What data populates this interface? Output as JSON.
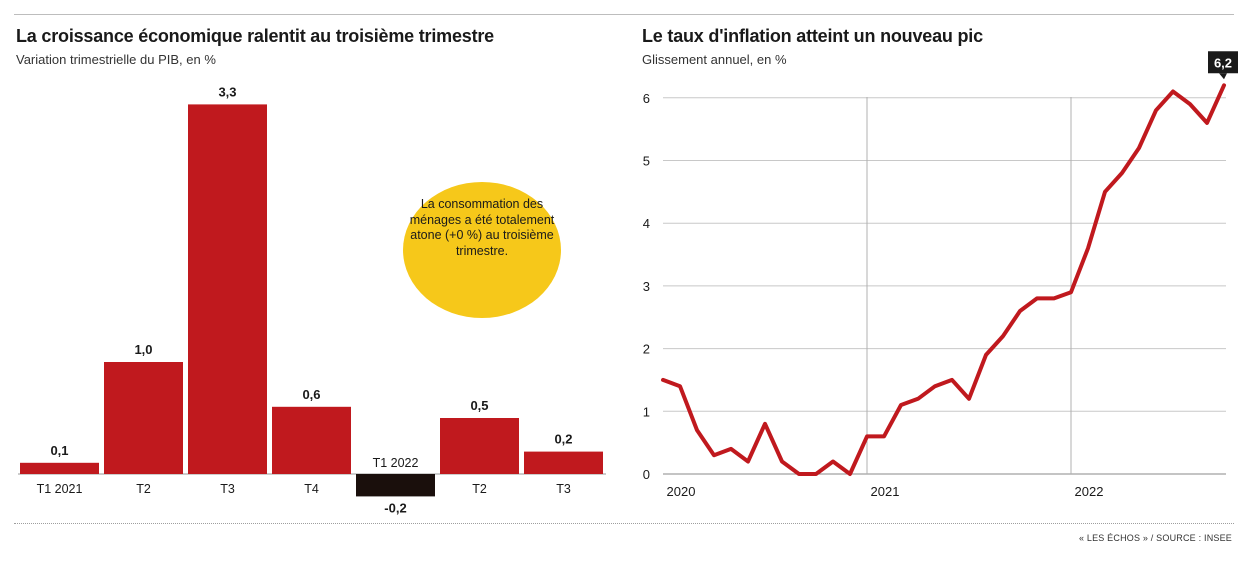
{
  "chart_data": [
    {
      "type": "bar",
      "title": "La croissance économique ralentit au troisième trimestre",
      "subtitle": "Variation trimestrielle du PIB, en %",
      "categories": [
        "T1 2021",
        "T2",
        "T3",
        "T4",
        "T1 2022",
        "T2",
        "T3"
      ],
      "values": [
        0.1,
        1.0,
        3.3,
        0.6,
        -0.2,
        0.5,
        0.2
      ],
      "value_labels": [
        "0,1",
        "1,0",
        "3,3",
        "0,6",
        "-0,2",
        "0,5",
        "0,2"
      ],
      "colors": {
        "positive": "#c0191e",
        "negative": "#1a0f0c"
      },
      "annotation": "La consommation des ménages a été totalement atone (+0 %) au troisième trimestre.",
      "annotation_color": "#f6c81a"
    },
    {
      "type": "line",
      "title": "Le taux d'inflation atteint un nouveau pic",
      "subtitle": "Glissement annuel, en %",
      "ylim": [
        0,
        6
      ],
      "yticks": [
        0,
        1,
        2,
        3,
        4,
        5,
        6
      ],
      "xticks": [
        "2020",
        "2021",
        "2022"
      ],
      "x": [
        "2020-01",
        "2020-02",
        "2020-03",
        "2020-04",
        "2020-05",
        "2020-06",
        "2020-07",
        "2020-08",
        "2020-09",
        "2020-10",
        "2020-11",
        "2020-12",
        "2021-01",
        "2021-02",
        "2021-03",
        "2021-04",
        "2021-05",
        "2021-06",
        "2021-07",
        "2021-08",
        "2021-09",
        "2021-10",
        "2021-11",
        "2021-12",
        "2022-01",
        "2022-02",
        "2022-03",
        "2022-04",
        "2022-05",
        "2022-06",
        "2022-07",
        "2022-08",
        "2022-09",
        "2022-10"
      ],
      "series": [
        {
          "values": [
            1.5,
            1.4,
            0.7,
            0.3,
            0.4,
            0.2,
            0.8,
            0.2,
            0.0,
            0.0,
            0.2,
            0.0,
            0.6,
            0.6,
            1.1,
            1.2,
            1.4,
            1.5,
            1.2,
            1.9,
            2.2,
            2.6,
            2.8,
            2.8,
            2.9,
            3.6,
            4.5,
            4.8,
            5.2,
            5.8,
            6.1,
            5.9,
            5.6,
            6.2
          ]
        }
      ],
      "line_color": "#c0191e",
      "callout": "6,2",
      "grid": true
    }
  ],
  "source": "« LES ÉCHOS » / SOURCE : INSEE"
}
